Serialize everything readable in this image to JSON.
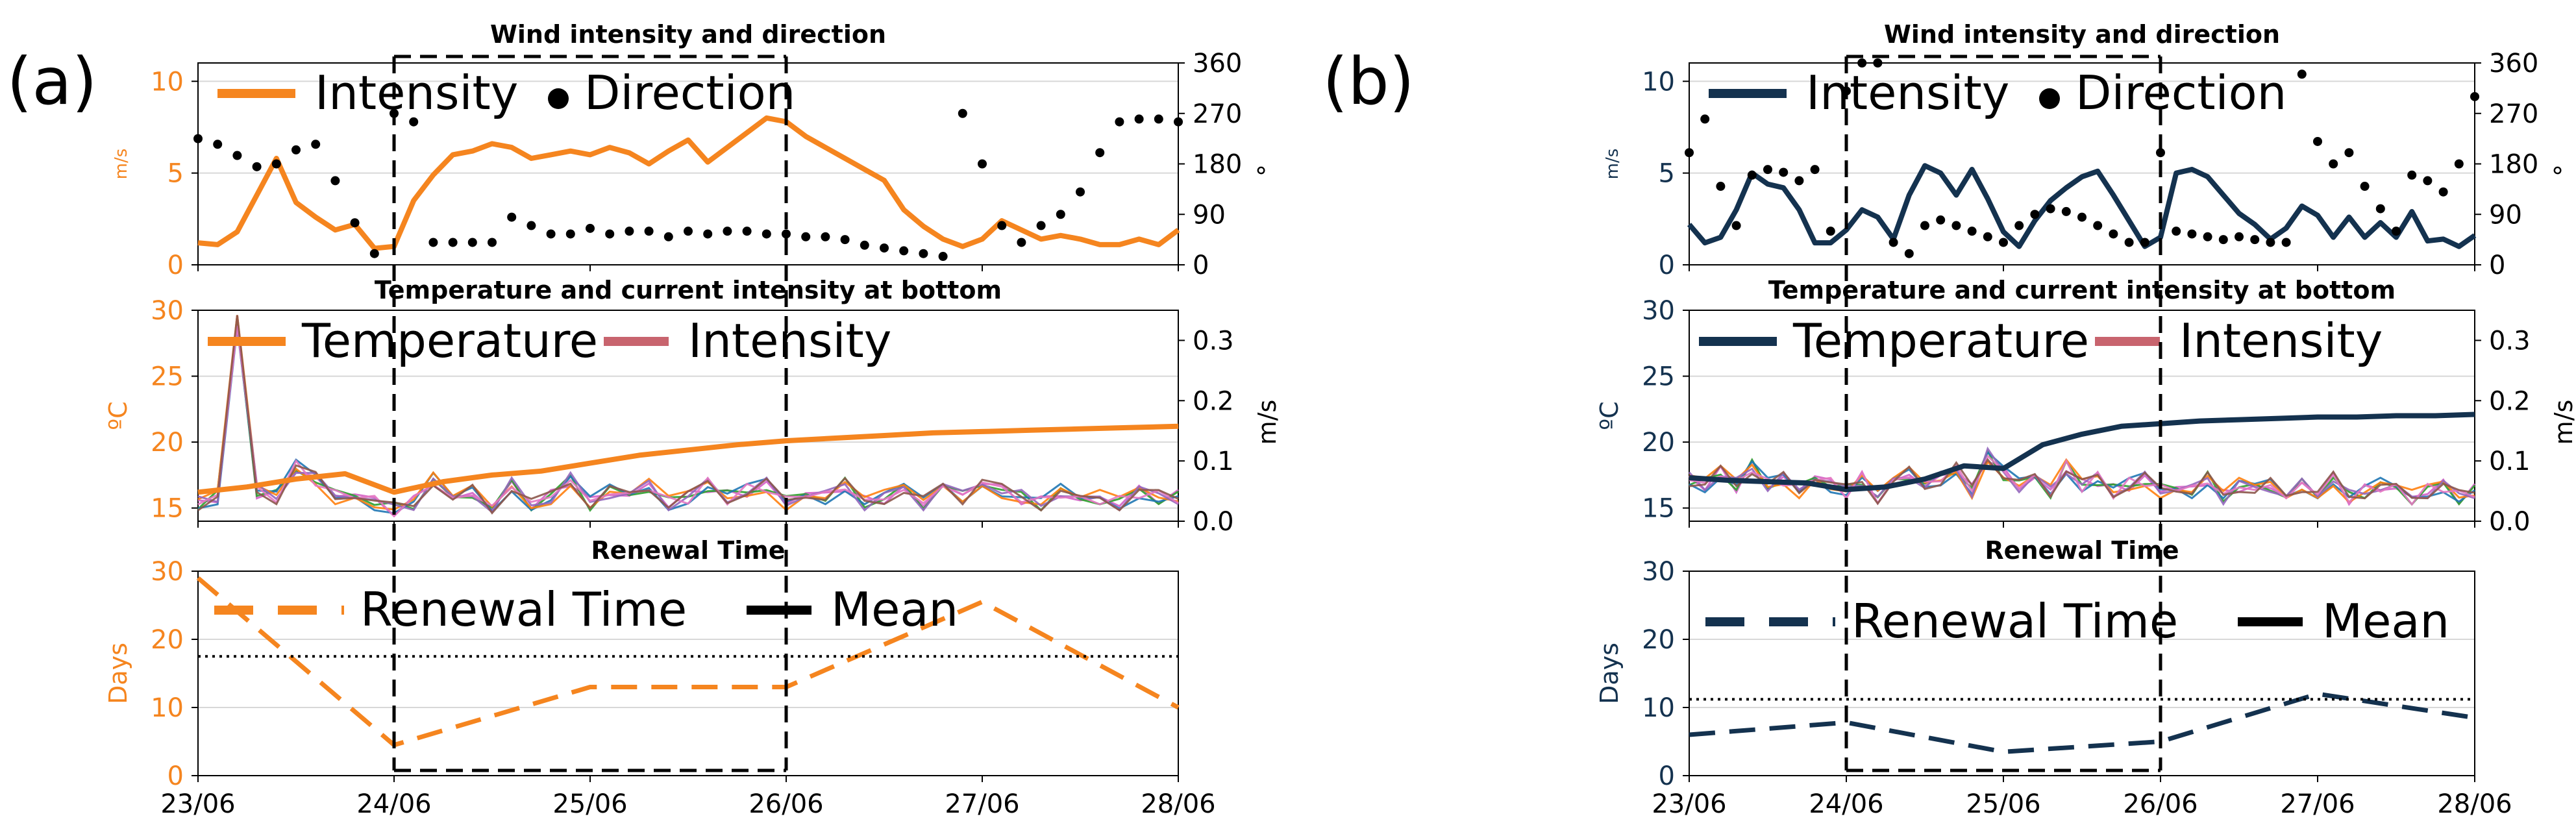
{
  "panel_labels": [
    "(a)",
    "(b)"
  ],
  "x_ticks": [
    "23/06",
    "24/06",
    "25/06",
    "26/06",
    "27/06",
    "28/06"
  ],
  "colors": {
    "a_series": "#f5851f",
    "b_series": "#14324f",
    "current_traces": [
      "#d462c6",
      "#2ca02c",
      "#1f77b4",
      "#ff7f0e",
      "#9467bd",
      "#e377c2",
      "#8c564b"
    ],
    "legend_intensity": "#c8646e",
    "direction": "#000000",
    "grid": "#d8d8d8"
  },
  "chart_data": [
    {
      "panel": "a",
      "type": "line",
      "title": "Wind intensity and direction",
      "ylabel": "m/s",
      "y2label": "°",
      "ylim": [
        0,
        11
      ],
      "y_ticks": [
        0,
        5,
        10
      ],
      "y2lim": [
        0,
        360
      ],
      "y2_ticks": [
        0,
        90,
        180,
        270,
        360
      ],
      "legend": [
        "Intensity",
        "Direction"
      ],
      "series": [
        {
          "name": "Intensity",
          "axis": "left",
          "x": [
            0,
            0.1,
            0.2,
            0.3,
            0.4,
            0.5,
            0.6,
            0.7,
            0.8,
            0.9,
            1.0,
            1.1,
            1.2,
            1.3,
            1.4,
            1.5,
            1.6,
            1.7,
            1.8,
            1.9,
            2.0,
            2.1,
            2.2,
            2.3,
            2.4,
            2.5,
            2.6,
            2.7,
            2.8,
            2.9,
            3.0,
            3.1,
            3.2,
            3.3,
            3.4,
            3.5,
            3.6,
            3.7,
            3.8,
            3.9,
            4.0,
            4.1,
            4.2,
            4.3,
            4.4,
            4.5,
            4.6,
            4.7,
            4.8,
            4.9,
            5.0
          ],
          "y": [
            1.2,
            1.1,
            1.8,
            3.8,
            5.8,
            3.4,
            2.6,
            1.9,
            2.2,
            0.9,
            1.0,
            3.5,
            4.9,
            6.0,
            6.2,
            6.6,
            6.4,
            5.8,
            6.0,
            6.2,
            6.0,
            6.4,
            6.1,
            5.5,
            6.2,
            6.8,
            5.6,
            6.4,
            7.2,
            8.0,
            7.8,
            7.0,
            6.4,
            5.8,
            5.2,
            4.6,
            3.0,
            2.1,
            1.4,
            1.0,
            1.4,
            2.4,
            1.9,
            1.4,
            1.6,
            1.4,
            1.1,
            1.1,
            1.4,
            1.1,
            1.9
          ]
        },
        {
          "name": "Direction",
          "axis": "right",
          "x": [
            0,
            0.1,
            0.2,
            0.3,
            0.4,
            0.5,
            0.6,
            0.7,
            0.8,
            0.9,
            1.0,
            1.1,
            1.2,
            1.3,
            1.4,
            1.5,
            1.6,
            1.7,
            1.8,
            1.9,
            2.0,
            2.1,
            2.2,
            2.3,
            2.4,
            2.5,
            2.6,
            2.7,
            2.8,
            2.9,
            3.0,
            3.1,
            3.2,
            3.3,
            3.4,
            3.5,
            3.6,
            3.7,
            3.8,
            3.9,
            4.0,
            4.1,
            4.2,
            4.3,
            4.4,
            4.5,
            4.6,
            4.7,
            4.8,
            4.9,
            5.0
          ],
          "y": [
            225,
            215,
            195,
            175,
            180,
            205,
            215,
            150,
            75,
            20,
            270,
            255,
            40,
            40,
            40,
            40,
            85,
            70,
            55,
            55,
            65,
            55,
            60,
            60,
            50,
            60,
            55,
            60,
            60,
            55,
            55,
            50,
            50,
            45,
            35,
            30,
            25,
            20,
            15,
            270,
            180,
            70,
            40,
            70,
            90,
            130,
            200,
            255,
            260,
            260,
            255
          ]
        }
      ]
    },
    {
      "panel": "a",
      "type": "line",
      "title": "Temperature and current intensity at bottom",
      "ylabel": "ºC",
      "y2label": "m/s",
      "ylim": [
        14,
        30
      ],
      "y_ticks": [
        15,
        20,
        25,
        30
      ],
      "y2lim": [
        0,
        0.35
      ],
      "y2_ticks": [
        "0.0",
        "0.1",
        "0.2",
        "0.3"
      ],
      "legend": [
        "Temperature",
        "Intensity"
      ],
      "series": [
        {
          "name": "Temperature",
          "axis": "left",
          "x": [
            0,
            0.25,
            0.5,
            0.75,
            1.0,
            1.25,
            1.5,
            1.75,
            2.0,
            2.25,
            2.5,
            2.75,
            3.0,
            3.25,
            3.5,
            3.75,
            4.0,
            4.25,
            4.5,
            4.75,
            5.0
          ],
          "y": [
            16.2,
            16.6,
            17.2,
            17.6,
            16.2,
            17.0,
            17.5,
            17.8,
            18.4,
            19.0,
            19.4,
            19.8,
            20.1,
            20.3,
            20.5,
            20.7,
            20.8,
            20.9,
            21.0,
            21.1,
            21.2
          ]
        },
        {
          "name": "Intensity",
          "axis": "right",
          "x": [
            0,
            0.1,
            0.2,
            0.3,
            0.4,
            0.5,
            0.6,
            0.7,
            0.8,
            0.9,
            1.0,
            1.1,
            1.2,
            1.3,
            1.4,
            1.5,
            1.6,
            1.7,
            1.8,
            1.9,
            2.0,
            2.1,
            2.2,
            2.3,
            2.4,
            2.5,
            2.6,
            2.7,
            2.8,
            2.9,
            3.0,
            3.1,
            3.2,
            3.3,
            3.4,
            3.5,
            3.6,
            3.7,
            3.8,
            3.9,
            4.0,
            4.1,
            4.2,
            4.3,
            4.4,
            4.5,
            4.6,
            4.7,
            4.8,
            4.9,
            5.0
          ],
          "y": [
            0.03,
            0.04,
            0.33,
            0.05,
            0.04,
            0.09,
            0.07,
            0.04,
            0.05,
            0.03,
            0.02,
            0.03,
            0.07,
            0.03,
            0.05,
            0.02,
            0.06,
            0.03,
            0.04,
            0.07,
            0.03,
            0.05,
            0.04,
            0.06,
            0.03,
            0.04,
            0.06,
            0.04,
            0.05,
            0.06,
            0.03,
            0.05,
            0.04,
            0.06,
            0.03,
            0.04,
            0.05,
            0.03,
            0.06,
            0.04,
            0.07,
            0.05,
            0.04,
            0.03,
            0.05,
            0.03,
            0.04,
            0.03,
            0.05,
            0.04,
            0.04
          ]
        }
      ]
    },
    {
      "panel": "a",
      "type": "line",
      "title": "Renewal Time",
      "ylabel": "Days",
      "ylim": [
        0,
        30
      ],
      "y_ticks": [
        0,
        10,
        20,
        30
      ],
      "legend": [
        "Renewal Time",
        "Mean"
      ],
      "series": [
        {
          "name": "Renewal Time",
          "x": [
            0,
            1,
            2,
            3,
            4,
            5
          ],
          "y": [
            29,
            4.5,
            13,
            13,
            25.5,
            10
          ]
        },
        {
          "name": "Mean",
          "x": [
            0,
            5
          ],
          "y": [
            17.5,
            17.5
          ]
        }
      ]
    },
    {
      "panel": "b",
      "type": "line",
      "title": "Wind intensity and direction",
      "ylabel": "m/s",
      "y2label": "°",
      "ylim": [
        0,
        11
      ],
      "y_ticks": [
        0,
        5,
        10
      ],
      "y2lim": [
        0,
        360
      ],
      "y2_ticks": [
        0,
        90,
        180,
        270,
        360
      ],
      "legend": [
        "Intensity",
        "Direction"
      ],
      "series": [
        {
          "name": "Intensity",
          "axis": "left",
          "x": [
            0,
            0.1,
            0.2,
            0.3,
            0.4,
            0.5,
            0.6,
            0.7,
            0.8,
            0.9,
            1.0,
            1.1,
            1.2,
            1.3,
            1.4,
            1.5,
            1.6,
            1.7,
            1.8,
            1.9,
            2.0,
            2.1,
            2.2,
            2.3,
            2.4,
            2.5,
            2.6,
            2.7,
            2.8,
            2.9,
            3.0,
            3.1,
            3.2,
            3.3,
            3.4,
            3.5,
            3.6,
            3.7,
            3.8,
            3.9,
            4.0,
            4.1,
            4.2,
            4.3,
            4.4,
            4.5,
            4.6,
            4.7,
            4.8,
            4.9,
            5.0
          ],
          "y": [
            2.2,
            1.2,
            1.5,
            3.0,
            5.0,
            4.4,
            4.2,
            3.0,
            1.2,
            1.2,
            1.9,
            3.0,
            2.6,
            1.4,
            3.8,
            5.4,
            5.0,
            3.8,
            5.2,
            3.6,
            1.8,
            1.0,
            2.4,
            3.5,
            4.2,
            4.8,
            5.1,
            3.8,
            2.4,
            1.0,
            1.5,
            5.0,
            5.2,
            4.8,
            3.8,
            2.8,
            2.2,
            1.4,
            2.0,
            3.2,
            2.7,
            1.5,
            2.6,
            1.5,
            2.3,
            1.5,
            2.9,
            1.3,
            1.4,
            1.0,
            1.6
          ]
        },
        {
          "name": "Direction",
          "axis": "right",
          "x": [
            0,
            0.1,
            0.2,
            0.3,
            0.4,
            0.5,
            0.6,
            0.7,
            0.8,
            0.9,
            1.0,
            1.1,
            1.2,
            1.3,
            1.4,
            1.5,
            1.6,
            1.7,
            1.8,
            1.9,
            2.0,
            2.1,
            2.2,
            2.3,
            2.4,
            2.5,
            2.6,
            2.7,
            2.8,
            2.9,
            3.0,
            3.1,
            3.2,
            3.3,
            3.4,
            3.5,
            3.6,
            3.7,
            3.8,
            3.9,
            4.0,
            4.1,
            4.2,
            4.3,
            4.4,
            4.5,
            4.6,
            4.7,
            4.8,
            4.9,
            5.0
          ],
          "y": [
            200,
            260,
            140,
            70,
            160,
            170,
            165,
            150,
            170,
            60,
            310,
            360,
            360,
            40,
            20,
            70,
            80,
            70,
            60,
            50,
            40,
            70,
            90,
            100,
            95,
            85,
            70,
            55,
            40,
            40,
            200,
            60,
            55,
            50,
            45,
            50,
            45,
            40,
            40,
            340,
            220,
            180,
            200,
            140,
            100,
            60,
            160,
            150,
            130,
            180,
            300
          ]
        }
      ]
    },
    {
      "panel": "b",
      "type": "line",
      "title": "Temperature and current intensity at bottom",
      "ylabel": "ºC",
      "y2label": "m/s",
      "ylim": [
        14,
        30
      ],
      "y_ticks": [
        15,
        20,
        25,
        30
      ],
      "y2lim": [
        0,
        0.35
      ],
      "y2_ticks": [
        "0.0",
        "0.1",
        "0.2",
        "0.3"
      ],
      "legend": [
        "Temperature",
        "Intensity"
      ],
      "series": [
        {
          "name": "Temperature",
          "axis": "left",
          "x": [
            0,
            0.25,
            0.5,
            0.75,
            1.0,
            1.25,
            1.5,
            1.75,
            2.0,
            2.25,
            2.5,
            2.75,
            3.0,
            3.25,
            3.5,
            3.75,
            4.0,
            4.25,
            4.5,
            4.75,
            5.0
          ],
          "y": [
            17.3,
            17.1,
            17.0,
            16.9,
            16.4,
            16.6,
            17.2,
            18.2,
            18.0,
            19.8,
            20.6,
            21.2,
            21.4,
            21.6,
            21.7,
            21.8,
            21.9,
            21.9,
            22.0,
            22.0,
            22.1
          ]
        },
        {
          "name": "Intensity",
          "axis": "right",
          "x": [
            0,
            0.1,
            0.2,
            0.3,
            0.4,
            0.5,
            0.6,
            0.7,
            0.8,
            0.9,
            1.0,
            1.1,
            1.2,
            1.3,
            1.4,
            1.5,
            1.6,
            1.7,
            1.8,
            1.9,
            2.0,
            2.1,
            2.2,
            2.3,
            2.4,
            2.5,
            2.6,
            2.7,
            2.8,
            2.9,
            3.0,
            3.1,
            3.2,
            3.3,
            3.4,
            3.5,
            3.6,
            3.7,
            3.8,
            3.9,
            4.0,
            4.1,
            4.2,
            4.3,
            4.4,
            4.5,
            4.6,
            4.7,
            4.8,
            4.9,
            5.0
          ],
          "y": [
            0.07,
            0.06,
            0.08,
            0.06,
            0.09,
            0.06,
            0.07,
            0.05,
            0.08,
            0.06,
            0.05,
            0.07,
            0.04,
            0.06,
            0.08,
            0.06,
            0.07,
            0.09,
            0.05,
            0.11,
            0.08,
            0.06,
            0.07,
            0.05,
            0.09,
            0.06,
            0.07,
            0.05,
            0.06,
            0.07,
            0.05,
            0.06,
            0.05,
            0.07,
            0.04,
            0.06,
            0.05,
            0.06,
            0.04,
            0.06,
            0.05,
            0.07,
            0.04,
            0.05,
            0.06,
            0.05,
            0.04,
            0.05,
            0.06,
            0.04,
            0.05
          ]
        }
      ]
    },
    {
      "panel": "b",
      "type": "line",
      "title": "Renewal Time",
      "ylabel": "Days",
      "ylim": [
        0,
        30
      ],
      "y_ticks": [
        0,
        10,
        20,
        30
      ],
      "legend": [
        "Renewal Time",
        "Mean"
      ],
      "series": [
        {
          "name": "Renewal Time",
          "x": [
            0,
            1,
            2,
            3,
            4,
            5
          ],
          "y": [
            6,
            7.8,
            3.5,
            5,
            12,
            8.5
          ]
        },
        {
          "name": "Mean",
          "x": [
            0,
            5
          ],
          "y": [
            11.2,
            11.2
          ]
        }
      ]
    }
  ]
}
